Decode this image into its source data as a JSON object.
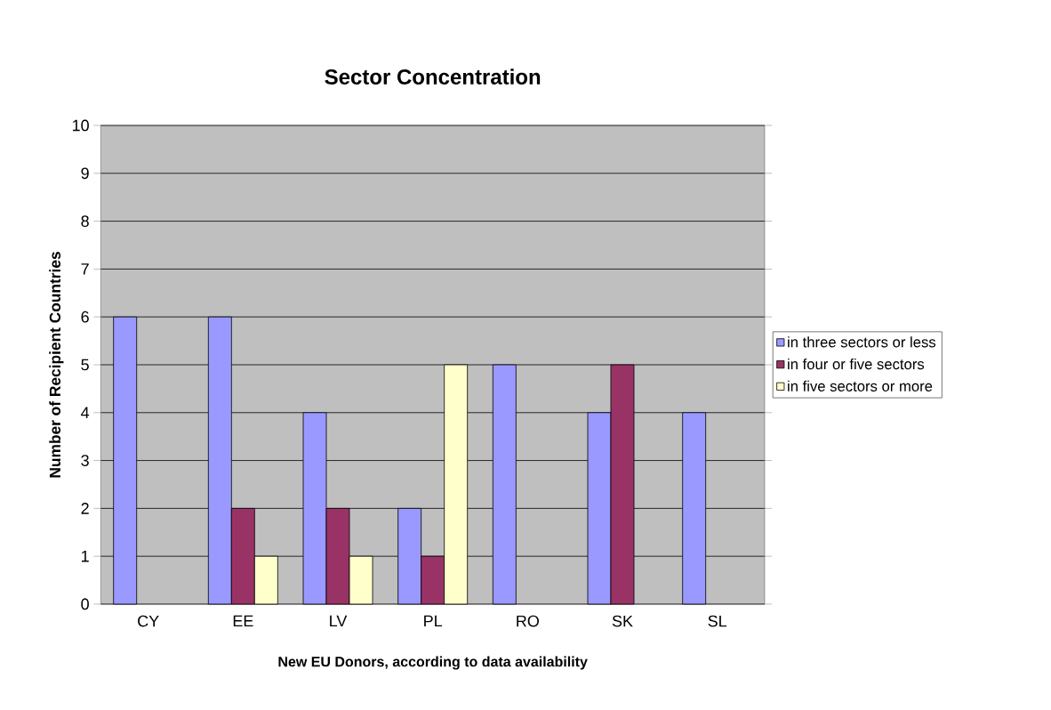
{
  "chart_data": {
    "type": "bar",
    "title": "Sector Concentration",
    "xlabel": "New EU Donors, according to data availability",
    "ylabel": "Number of Recipient Countries",
    "categories": [
      "CY",
      "EE",
      "LV",
      "PL",
      "RO",
      "SK",
      "SL"
    ],
    "series": [
      {
        "name": "in three sectors or less",
        "color": "#9999ff",
        "values": [
          6,
          6,
          4,
          2,
          5,
          4,
          4
        ]
      },
      {
        "name": "in four or five sectors",
        "color": "#993366",
        "values": [
          null,
          2,
          2,
          1,
          null,
          5,
          null
        ]
      },
      {
        "name": "in five sectors or more",
        "color": "#ffffcc",
        "values": [
          null,
          1,
          1,
          5,
          null,
          null,
          null
        ]
      }
    ],
    "ylim": [
      0,
      10
    ],
    "yticks": [
      0,
      1,
      2,
      3,
      4,
      5,
      6,
      7,
      8,
      9,
      10
    ],
    "grid": "y",
    "legend": "right"
  }
}
